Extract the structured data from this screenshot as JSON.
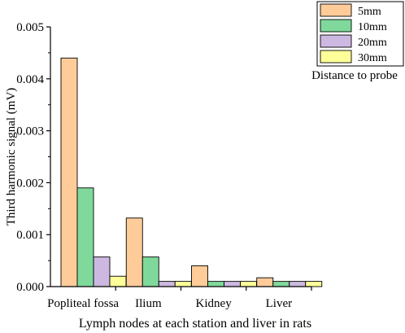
{
  "chart_data": {
    "type": "bar",
    "xlabel": "Lymph nodes at each station and liver in rats",
    "ylabel": "Third harmonic signal (mV)",
    "categories": [
      "Popliteal fossa",
      "Ilium",
      "Kidney",
      "Liver"
    ],
    "ylim": [
      0,
      0.005
    ],
    "yticks": [
      "0.000",
      "0.001",
      "0.002",
      "0.003",
      "0.004",
      "0.005"
    ],
    "legend_placement": "top-right",
    "legend_caption": "Distance to probe",
    "grid": false,
    "series": [
      {
        "name": "5mm",
        "color": "#FFCC99",
        "values": [
          0.0044,
          0.00132,
          0.0004,
          0.00017
        ]
      },
      {
        "name": "10mm",
        "color": "#7FD99B",
        "values": [
          0.0019,
          0.00057,
          0.0001,
          0.0001
        ]
      },
      {
        "name": "20mm",
        "color": "#CCB8E0",
        "values": [
          0.00057,
          0.0001,
          0.0001,
          0.0001
        ]
      },
      {
        "name": "30mm",
        "color": "#FFFF99",
        "values": [
          0.0002,
          0.0001,
          0.0001,
          0.0001
        ]
      }
    ]
  }
}
